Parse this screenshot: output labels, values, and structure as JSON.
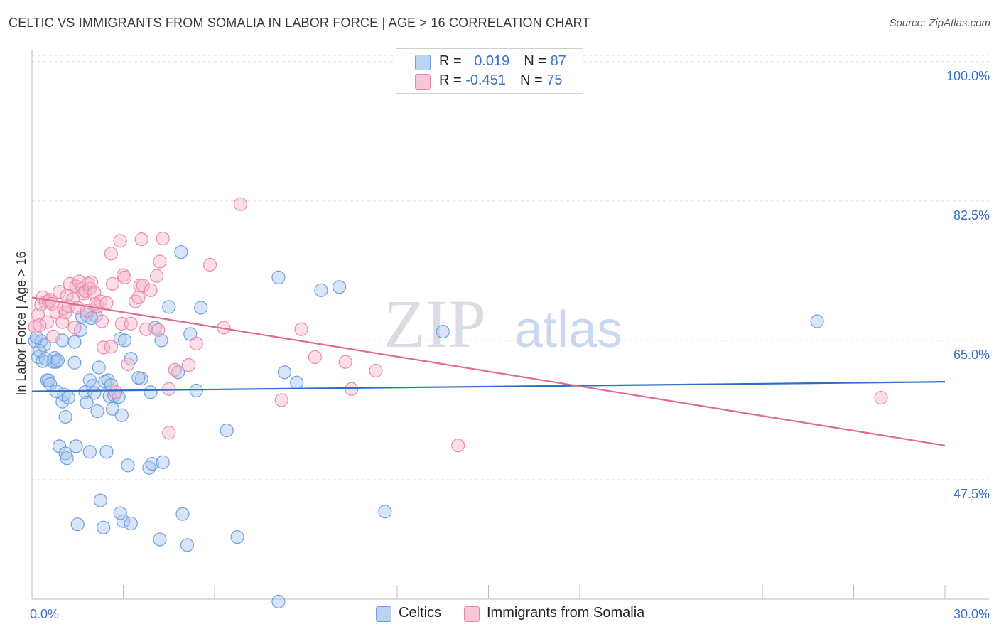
{
  "title": "CELTIC VS IMMIGRANTS FROM SOMALIA IN LABOR FORCE | AGE > 16 CORRELATION CHART",
  "source": "Source: ZipAtlas.com",
  "watermark": {
    "zip": "ZIP",
    "atlas": "atlas"
  },
  "legend": {
    "rows": [
      {
        "r_label": "R = ",
        "r_value": "0.019",
        "n_label": "N = ",
        "n_value": "87"
      },
      {
        "r_label": "R = ",
        "r_value": "-0.451",
        "n_label": "N = ",
        "n_value": "75"
      }
    ]
  },
  "colors": {
    "celtics_fill": "#a9c6f0",
    "celtics_stroke": "#6f9fdc",
    "celtics_line": "#2a6fcf",
    "somalia_fill": "#f7b6cc",
    "somalia_stroke": "#e98aaa",
    "somalia_line": "#e46895",
    "tick_label": "#3a70c8",
    "grid": "#dddddd"
  },
  "chart_data": {
    "type": "scatter",
    "ylabel": "In Labor Force | Age > 16",
    "xlim": [
      0,
      30
    ],
    "ylim": [
      32.5,
      101.5
    ],
    "x_tick_labels": [
      {
        "value": 0,
        "label": "0.0%"
      },
      {
        "value": 30,
        "label": "30.0%"
      }
    ],
    "y_ticks": [
      {
        "value": 100,
        "label": "100.0%"
      },
      {
        "value": 82.5,
        "label": "82.5%"
      },
      {
        "value": 65,
        "label": "65.0%"
      },
      {
        "value": 47.5,
        "label": "47.5%"
      }
    ],
    "grid": "horizontal dashed",
    "series": [
      {
        "name": "Celtics",
        "trend": [
          [
            0,
            58.6
          ],
          [
            30,
            59.8
          ]
        ],
        "points": [
          [
            0.1,
            64.9
          ],
          [
            0.2,
            62.9
          ],
          [
            0.3,
            64.9
          ],
          [
            0.35,
            62.4
          ],
          [
            0.4,
            64.4
          ],
          [
            0.5,
            60.0
          ],
          [
            0.55,
            60.0
          ],
          [
            0.6,
            59.5
          ],
          [
            0.7,
            62.3
          ],
          [
            0.75,
            62.8
          ],
          [
            0.8,
            62.3
          ],
          [
            0.8,
            58.6
          ],
          [
            0.85,
            62.5
          ],
          [
            0.9,
            51.7
          ],
          [
            1.0,
            65.0
          ],
          [
            1.0,
            57.3
          ],
          [
            1.05,
            58.2
          ],
          [
            1.1,
            55.4
          ],
          [
            1.1,
            50.8
          ],
          [
            1.15,
            50.2
          ],
          [
            1.4,
            64.8
          ],
          [
            1.45,
            51.7
          ],
          [
            1.5,
            41.9
          ],
          [
            1.6,
            66.3
          ],
          [
            1.65,
            68.0
          ],
          [
            1.75,
            58.5
          ],
          [
            1.8,
            68.2
          ],
          [
            1.8,
            57.2
          ],
          [
            1.9,
            60.0
          ],
          [
            1.9,
            51.0
          ],
          [
            2.0,
            59.3
          ],
          [
            2.05,
            58.4
          ],
          [
            2.15,
            56.1
          ],
          [
            2.2,
            61.6
          ],
          [
            2.25,
            44.9
          ],
          [
            2.35,
            41.5
          ],
          [
            2.4,
            59.8
          ],
          [
            2.45,
            51.0
          ],
          [
            2.5,
            60.0
          ],
          [
            2.55,
            58.0
          ],
          [
            2.6,
            59.4
          ],
          [
            2.65,
            56.4
          ],
          [
            2.7,
            58.1
          ],
          [
            2.85,
            57.9
          ],
          [
            2.9,
            65.2
          ],
          [
            2.95,
            55.6
          ],
          [
            3.05,
            65.0
          ],
          [
            3.0,
            42.3
          ],
          [
            3.15,
            49.3
          ],
          [
            3.25,
            62.7
          ],
          [
            3.25,
            42.0
          ],
          [
            3.6,
            60.2
          ],
          [
            3.85,
            49.0
          ],
          [
            3.9,
            58.5
          ],
          [
            3.95,
            49.5
          ],
          [
            4.05,
            66.6
          ],
          [
            4.2,
            40.0
          ],
          [
            4.25,
            65.0
          ],
          [
            4.3,
            49.7
          ],
          [
            4.5,
            69.2
          ],
          [
            4.8,
            61.0
          ],
          [
            4.9,
            76.1
          ],
          [
            4.95,
            43.2
          ],
          [
            5.1,
            39.3
          ],
          [
            5.2,
            65.8
          ],
          [
            5.4,
            58.7
          ],
          [
            5.55,
            69.1
          ],
          [
            6.4,
            53.7
          ],
          [
            6.75,
            40.3
          ],
          [
            8.1,
            72.9
          ],
          [
            8.1,
            32.2
          ],
          [
            8.3,
            61.0
          ],
          [
            8.7,
            59.7
          ],
          [
            9.5,
            71.3
          ],
          [
            10.1,
            71.7
          ],
          [
            11.6,
            43.5
          ],
          [
            13.5,
            66.1
          ],
          [
            25.8,
            67.4
          ],
          [
            1.4,
            62.2
          ],
          [
            0.25,
            63.7
          ],
          [
            2.1,
            68.1
          ],
          [
            1.95,
            67.8
          ],
          [
            0.15,
            65.4
          ],
          [
            0.45,
            62.7
          ],
          [
            3.5,
            60.3
          ],
          [
            1.2,
            57.8
          ],
          [
            2.9,
            43.3
          ]
        ]
      },
      {
        "name": "Immigrants from Somalia",
        "trend": [
          [
            0,
            70.4
          ],
          [
            30,
            51.8
          ]
        ],
        "points": [
          [
            0.1,
            66.7
          ],
          [
            0.2,
            68.2
          ],
          [
            0.3,
            69.5
          ],
          [
            0.35,
            70.4
          ],
          [
            0.45,
            69.8
          ],
          [
            0.5,
            67.3
          ],
          [
            0.55,
            69.9
          ],
          [
            0.6,
            70.1
          ],
          [
            0.65,
            69.6
          ],
          [
            0.7,
            65.5
          ],
          [
            0.8,
            68.5
          ],
          [
            0.9,
            71.1
          ],
          [
            1.0,
            67.3
          ],
          [
            1.05,
            69.0
          ],
          [
            1.1,
            68.5
          ],
          [
            1.15,
            70.6
          ],
          [
            1.2,
            69.3
          ],
          [
            1.25,
            72.1
          ],
          [
            1.35,
            70.2
          ],
          [
            1.4,
            66.6
          ],
          [
            1.45,
            71.8
          ],
          [
            1.5,
            69.1
          ],
          [
            1.55,
            72.4
          ],
          [
            1.65,
            71.5
          ],
          [
            1.7,
            70.9
          ],
          [
            1.75,
            71.2
          ],
          [
            1.8,
            68.7
          ],
          [
            1.85,
            72.1
          ],
          [
            1.9,
            71.5
          ],
          [
            1.95,
            72.3
          ],
          [
            2.05,
            71.0
          ],
          [
            2.1,
            69.6
          ],
          [
            2.15,
            69.3
          ],
          [
            2.25,
            69.9
          ],
          [
            2.3,
            67.4
          ],
          [
            2.35,
            64.1
          ],
          [
            2.45,
            69.7
          ],
          [
            2.6,
            64.2
          ],
          [
            2.6,
            75.9
          ],
          [
            2.65,
            72.1
          ],
          [
            2.75,
            58.5
          ],
          [
            2.9,
            77.5
          ],
          [
            2.95,
            67.1
          ],
          [
            3.0,
            73.2
          ],
          [
            3.05,
            72.9
          ],
          [
            3.15,
            62.0
          ],
          [
            3.25,
            67.1
          ],
          [
            3.4,
            69.9
          ],
          [
            3.5,
            70.4
          ],
          [
            3.55,
            71.9
          ],
          [
            3.6,
            77.7
          ],
          [
            3.65,
            71.9
          ],
          [
            3.75,
            66.4
          ],
          [
            3.9,
            71.3
          ],
          [
            4.1,
            73.1
          ],
          [
            4.15,
            66.3
          ],
          [
            4.2,
            74.9
          ],
          [
            4.3,
            77.8
          ],
          [
            4.5,
            53.4
          ],
          [
            4.5,
            58.9
          ],
          [
            4.7,
            61.3
          ],
          [
            5.15,
            61.9
          ],
          [
            5.4,
            64.6
          ],
          [
            5.85,
            74.5
          ],
          [
            6.3,
            66.6
          ],
          [
            6.85,
            82.1
          ],
          [
            8.2,
            57.5
          ],
          [
            8.85,
            66.4
          ],
          [
            9.3,
            62.9
          ],
          [
            10.3,
            62.3
          ],
          [
            10.5,
            58.9
          ],
          [
            11.3,
            61.2
          ],
          [
            14.0,
            51.8
          ],
          [
            27.9,
            57.8
          ],
          [
            0.25,
            66.9
          ]
        ]
      }
    ]
  },
  "bottom_legend": [
    "Celtics",
    "Immigrants from Somalia"
  ]
}
